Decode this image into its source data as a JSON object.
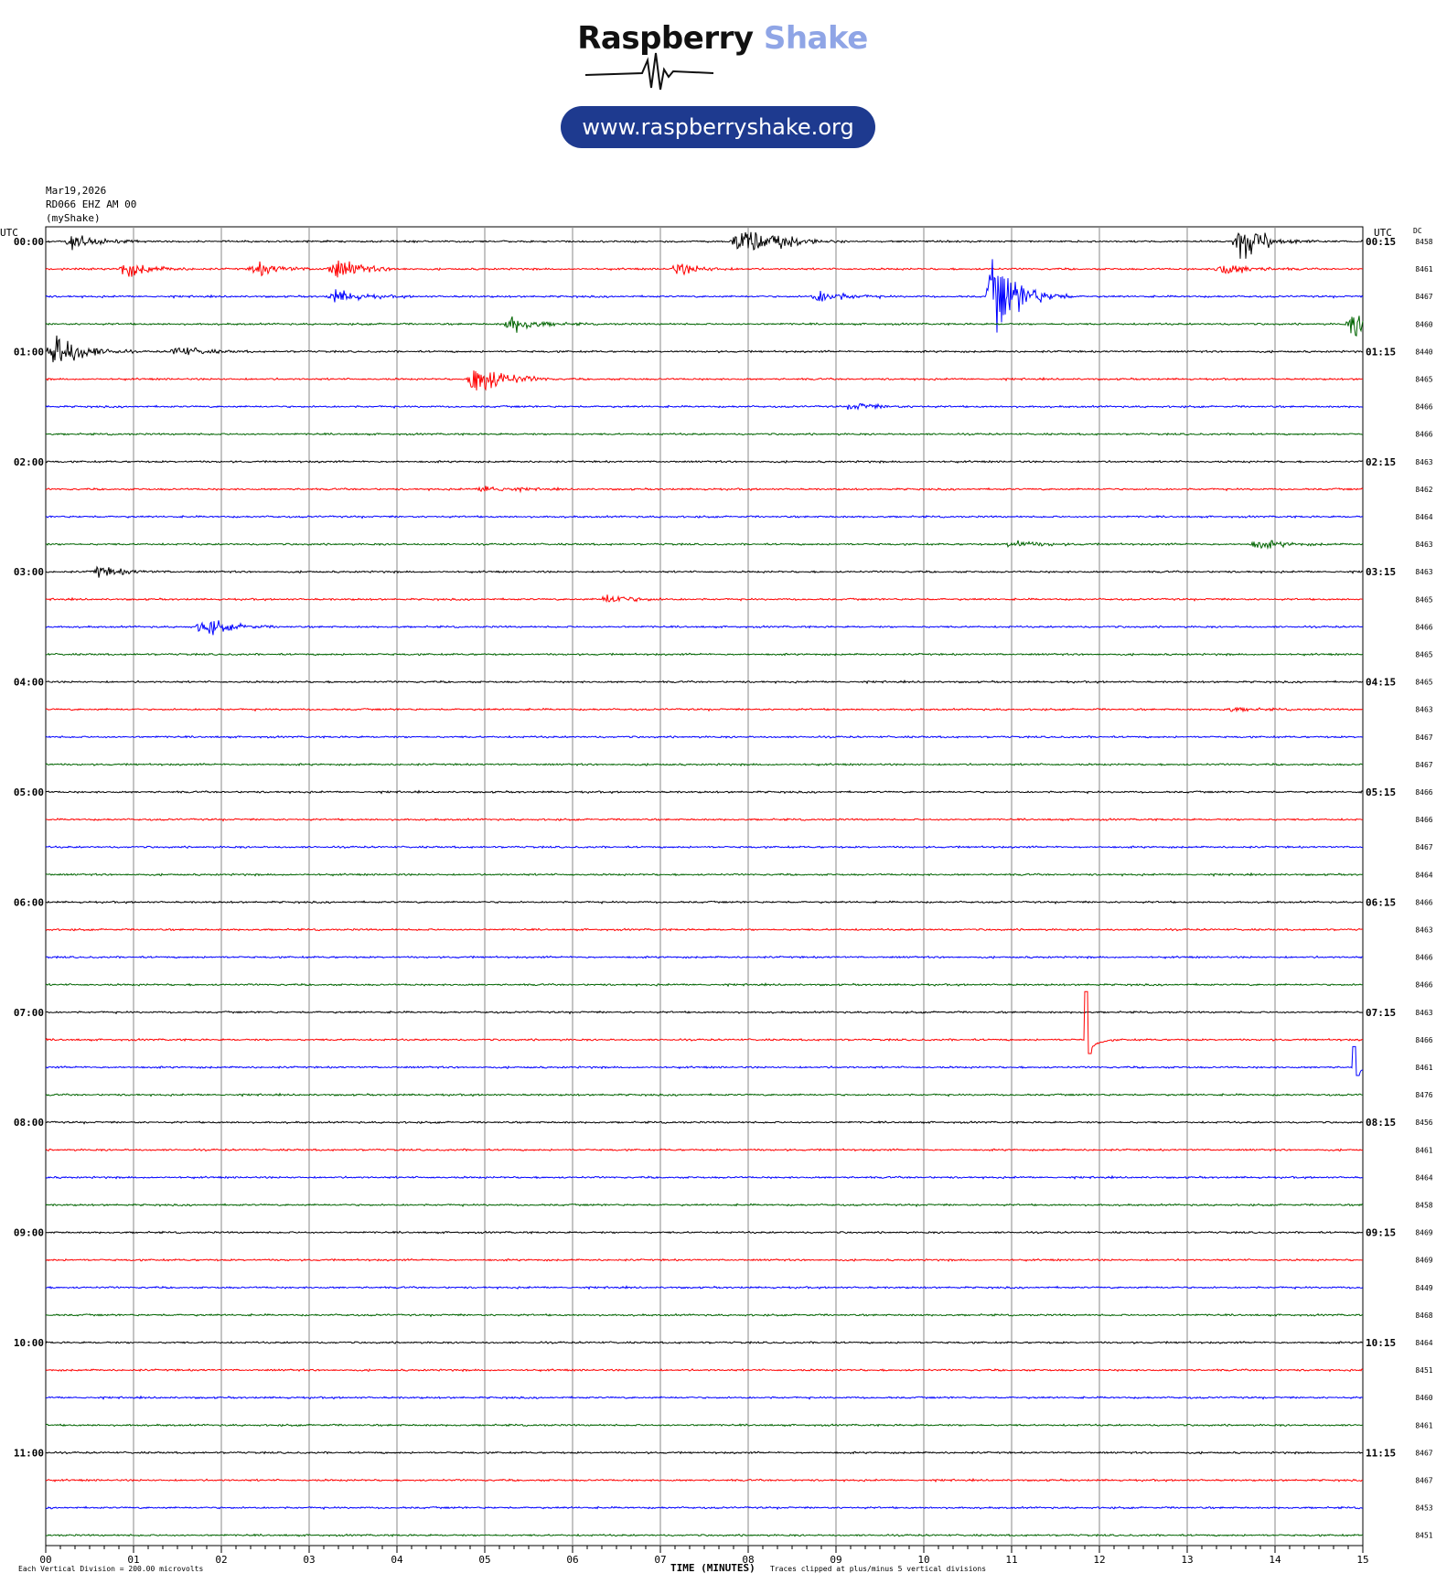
{
  "brand": {
    "word1": "Raspberry",
    "word2": "Shake",
    "url": "www.raspberryshake.org"
  },
  "header": {
    "date": "Mar19,2026",
    "station": "RD066 EHZ AM 00",
    "network": "(myShake)"
  },
  "chart_data": {
    "type": "line",
    "title": "",
    "xlabel": "TIME (MINUTES)",
    "x_ticks": [
      "00",
      "01",
      "02",
      "03",
      "04",
      "05",
      "06",
      "07",
      "08",
      "09",
      "10",
      "11",
      "12",
      "13",
      "14",
      "15"
    ],
    "xlim": [
      0,
      15
    ],
    "left_header": "UTC",
    "right_header": "UTC",
    "dc_header": "DC",
    "trace_colors": [
      "#000000",
      "#ff0000",
      "#0000ff",
      "#006400"
    ],
    "left_labels": [
      "00:00",
      "01:00",
      "02:00",
      "03:00",
      "04:00",
      "05:00",
      "06:00",
      "07:00",
      "08:00",
      "09:00",
      "10:00",
      "11:00"
    ],
    "right_labels": [
      "00:15",
      "01:15",
      "02:15",
      "03:15",
      "04:15",
      "05:15",
      "06:15",
      "07:15",
      "08:15",
      "09:15",
      "10:15",
      "11:15"
    ],
    "dc_values": [
      "8458",
      "8461",
      "8467",
      "8460",
      "8440",
      "8465",
      "8466",
      "8466",
      "8463",
      "8462",
      "8464",
      "8463",
      "8463",
      "8465",
      "8466",
      "8465",
      "8465",
      "8463",
      "8467",
      "8467",
      "8466",
      "8466",
      "8467",
      "8464",
      "8466",
      "8463",
      "8466",
      "8466",
      "8463",
      "8466",
      "8461",
      "8476",
      "8456",
      "8461",
      "8464",
      "8458",
      "8469",
      "8469",
      "8449",
      "8468",
      "8464",
      "8451",
      "8460",
      "8461",
      "8467",
      "8467",
      "8453",
      "8451"
    ],
    "events": [
      {
        "row": 0,
        "minute": 0.3,
        "amp": 0.5
      },
      {
        "row": 0,
        "minute": 7.9,
        "amp": 1.3
      },
      {
        "row": 0,
        "minute": 8.3,
        "amp": 0.4
      },
      {
        "row": 0,
        "minute": 13.6,
        "amp": 1.3
      },
      {
        "row": 1,
        "minute": 0.9,
        "amp": 0.6
      },
      {
        "row": 1,
        "minute": 2.4,
        "amp": 0.5
      },
      {
        "row": 1,
        "minute": 3.3,
        "amp": 0.8
      },
      {
        "row": 1,
        "minute": 7.2,
        "amp": 0.4
      },
      {
        "row": 1,
        "minute": 13.4,
        "amp": 0.5
      },
      {
        "row": 2,
        "minute": 3.3,
        "amp": 0.5
      },
      {
        "row": 2,
        "minute": 8.8,
        "amp": 0.5
      },
      {
        "row": 2,
        "minute": 10.8,
        "amp": 3.0
      },
      {
        "row": 3,
        "minute": 5.3,
        "amp": 0.6
      },
      {
        "row": 3,
        "minute": 14.9,
        "amp": 1.0
      },
      {
        "row": 4,
        "minute": 0.1,
        "amp": 1.6
      },
      {
        "row": 4,
        "minute": 1.5,
        "amp": 0.4
      },
      {
        "row": 5,
        "minute": 4.9,
        "amp": 1.5
      },
      {
        "row": 6,
        "minute": 9.2,
        "amp": 0.25
      },
      {
        "row": 9,
        "minute": 5.0,
        "amp": 0.3
      },
      {
        "row": 11,
        "minute": 11.0,
        "amp": 0.3
      },
      {
        "row": 11,
        "minute": 13.8,
        "amp": 0.35
      },
      {
        "row": 12,
        "minute": 0.6,
        "amp": 0.4
      },
      {
        "row": 13,
        "minute": 6.4,
        "amp": 0.35
      },
      {
        "row": 14,
        "minute": 1.8,
        "amp": 0.65
      },
      {
        "row": 17,
        "minute": 13.5,
        "amp": 0.15
      }
    ],
    "spikes": [
      {
        "row": 29,
        "minute": 11.85,
        "up": 3.5,
        "down": 1.0
      },
      {
        "row": 30,
        "minute": 14.9,
        "up": 1.5,
        "down": 0.6
      }
    ],
    "time_unit": "minutes",
    "footer_left": "Each Vertical Division = 200.00 microvolts",
    "footer_right": "Traces clipped at plus/minus 5 vertical divisions"
  }
}
